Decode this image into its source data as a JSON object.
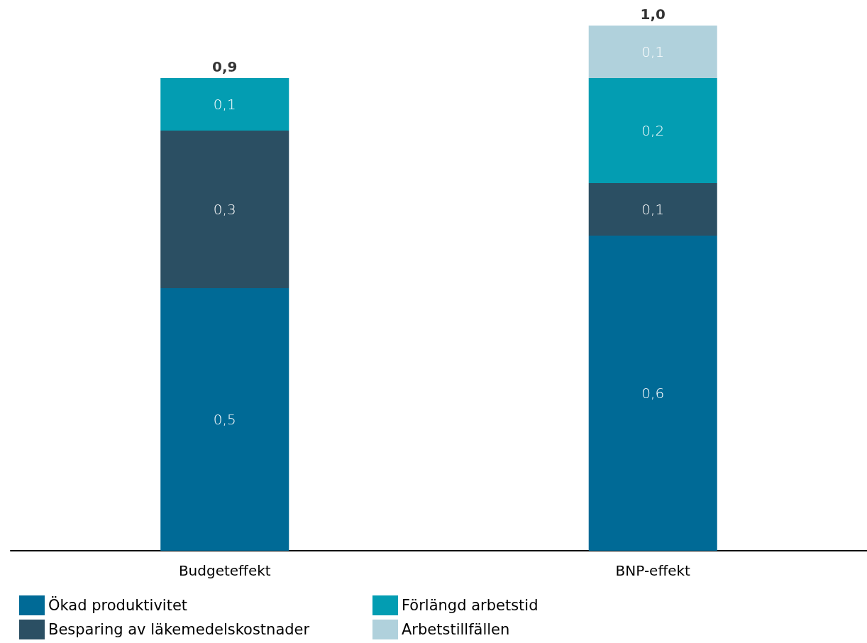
{
  "chart_data": {
    "type": "bar",
    "stacked": true,
    "categories": [
      "Budgeteffekt",
      "BNP-effekt"
    ],
    "series": [
      {
        "name": "Ökad produktivitet",
        "color": "#006a96",
        "values": [
          0.5,
          0.6
        ],
        "value_labels": [
          "0,5",
          "0,6"
        ]
      },
      {
        "name": "Besparing av läkemedelskostnader",
        "color": "#2b4f63",
        "values": [
          0.3,
          0.1
        ],
        "value_labels": [
          "0,3",
          "0,1"
        ]
      },
      {
        "name": "Förlängd arbetstid",
        "color": "#039db2",
        "values": [
          0.1,
          0.2
        ],
        "value_labels": [
          "0,1",
          "0,2"
        ]
      },
      {
        "name": "Arbetstillfällen",
        "color": "#b0d1dc",
        "values": [
          null,
          0.1
        ],
        "value_labels": [
          null,
          "0,1"
        ]
      }
    ],
    "totals": [
      "0,9",
      "1,0"
    ],
    "legend": "bottom"
  }
}
